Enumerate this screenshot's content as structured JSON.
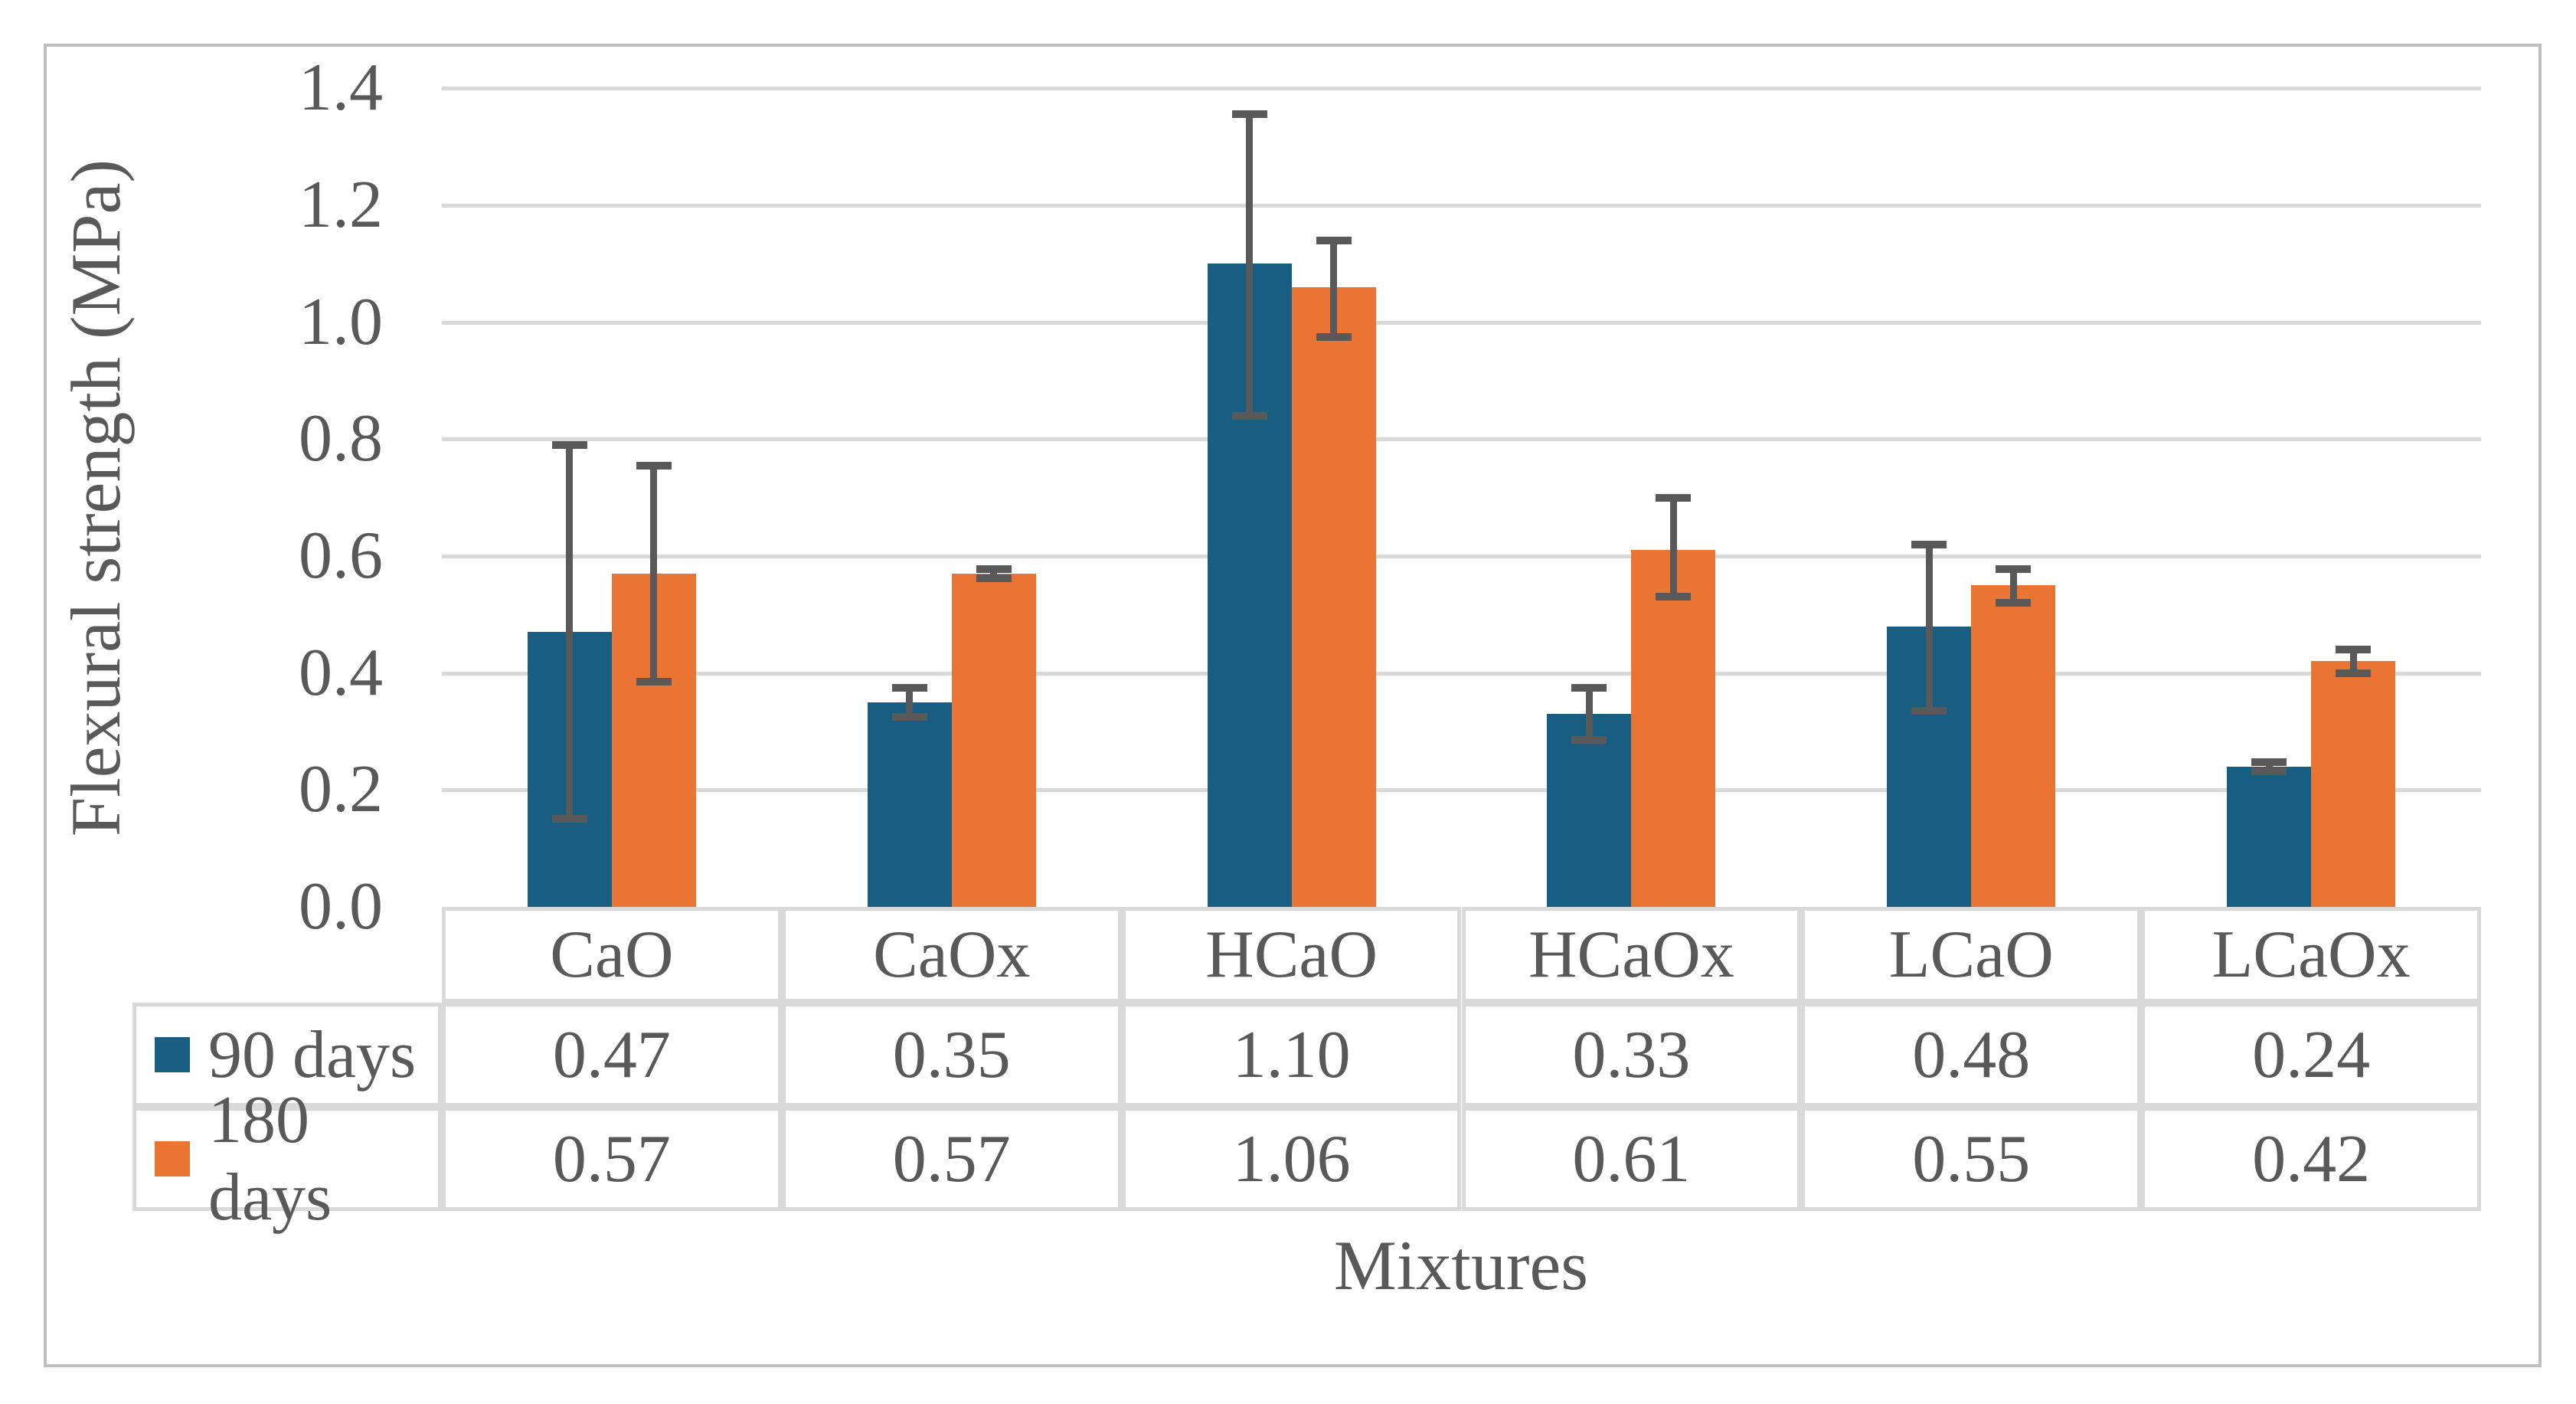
{
  "figure": {
    "y_axis": {
      "title": "Flexural strength (MPa)",
      "tick_labels": [
        "0.0",
        "0.2",
        "0.4",
        "0.6",
        "0.8",
        "1.0",
        "1.2",
        "1.4"
      ],
      "min": 0.0,
      "max": 1.4,
      "step": 0.2
    },
    "x_axis": {
      "title": "Mixtures"
    },
    "legend": [
      {
        "label": "90 days",
        "color": "#175E82"
      },
      {
        "label": "180 days",
        "color": "#E97434"
      }
    ]
  },
  "chart_data": {
    "type": "bar",
    "title": "",
    "categories": [
      "CaO",
      "CaOx",
      "HCaO",
      "HCaOx",
      "LCaO",
      "LCaOx"
    ],
    "series": [
      {
        "name": "90 days",
        "color": "#175E82",
        "values": [
          0.47,
          0.35,
          1.1,
          0.33,
          0.48,
          0.24
        ],
        "display": [
          "0.47",
          "0.35",
          "1.10",
          "0.33",
          "0.48",
          "0.24"
        ],
        "error_upper": [
          0.79,
          0.375,
          1.355,
          0.375,
          0.62,
          0.248
        ],
        "error_lower": [
          0.15,
          0.325,
          0.84,
          0.285,
          0.335,
          0.232
        ]
      },
      {
        "name": "180 days",
        "color": "#E97434",
        "values": [
          0.57,
          0.57,
          1.06,
          0.61,
          0.55,
          0.42
        ],
        "display": [
          "0.57",
          "0.57",
          "1.06",
          "0.61",
          "0.55",
          "0.42"
        ],
        "error_upper": [
          0.755,
          0.578,
          1.14,
          0.7,
          0.578,
          0.44
        ],
        "error_lower": [
          0.385,
          0.562,
          0.975,
          0.53,
          0.52,
          0.4
        ]
      }
    ],
    "xlabel": "Mixtures",
    "ylabel": "Flexural strength (MPa)",
    "ylim": [
      0,
      1.4
    ],
    "ytick_step": 0.2,
    "grid": true,
    "legend_position": "table-left",
    "error_bars": true
  },
  "colors": {
    "series_90_days": "#175E82",
    "series_180_days": "#E97434",
    "text": "#595959",
    "error_bar": "#595959",
    "gridline": "#D9D9D9",
    "table_border": "#D9D9D9",
    "figure_border": "#BFBFBF",
    "background": "#FFFFFF"
  }
}
